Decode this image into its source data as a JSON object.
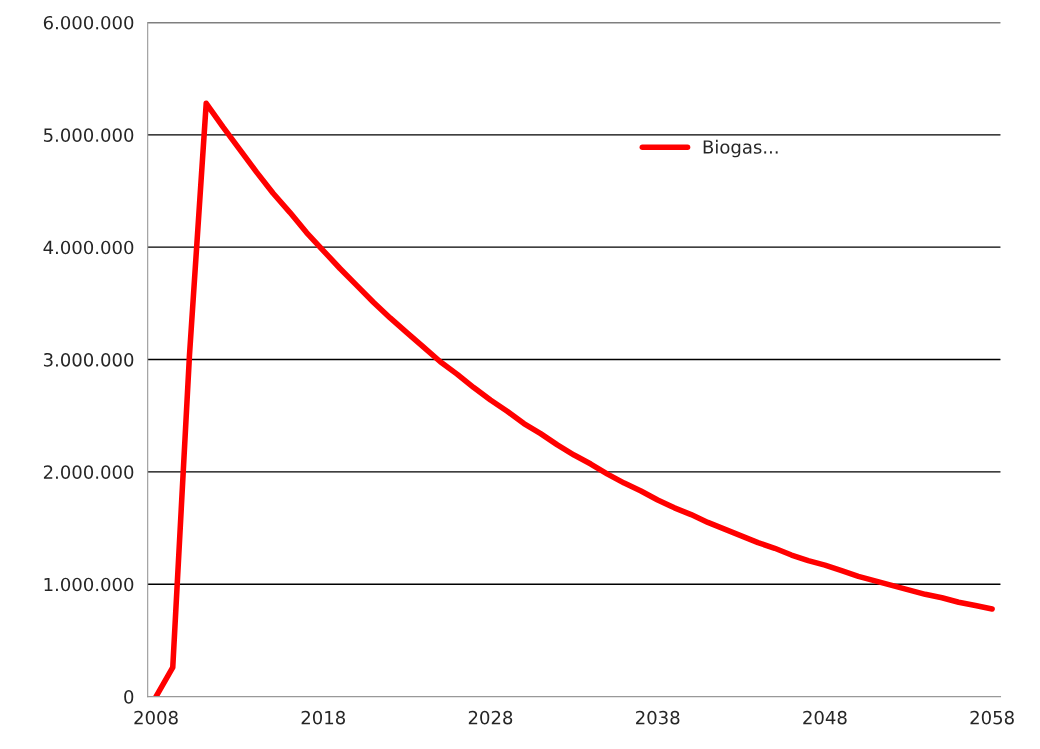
{
  "chart_data": {
    "type": "line",
    "categories": [
      "2008",
      null,
      null,
      null,
      null,
      null,
      null,
      null,
      null,
      null,
      "2018",
      null,
      null,
      null,
      null,
      null,
      null,
      null,
      null,
      null,
      "2028",
      null,
      null,
      null,
      null,
      null,
      null,
      null,
      null,
      null,
      "2038",
      null,
      null,
      null,
      null,
      null,
      null,
      null,
      null,
      null,
      "2048",
      null,
      null,
      null,
      null,
      null,
      null,
      null,
      null,
      null,
      "2058"
    ],
    "series": [
      {
        "name": "Biogas...",
        "color": "#ff0000",
        "values": [
          0,
          260000,
          3040000,
          5280000,
          5070000,
          4870000,
          4670000,
          4480000,
          4310000,
          4130000,
          3970000,
          3810000,
          3660000,
          3510000,
          3370000,
          3240000,
          3110000,
          2980000,
          2870000,
          2750000,
          2640000,
          2540000,
          2430000,
          2340000,
          2240000,
          2150000,
          2070000,
          1980000,
          1900000,
          1830000,
          1750000,
          1680000,
          1620000,
          1550000,
          1490000,
          1430000,
          1370000,
          1320000,
          1260000,
          1210000,
          1170000,
          1120000,
          1070000,
          1030000,
          990000,
          950000,
          910000,
          880000,
          840000,
          810000,
          780000
        ]
      }
    ],
    "ylim": [
      0,
      6000000
    ],
    "yticks": [
      {
        "value": 0,
        "label": "0"
      },
      {
        "value": 1000000,
        "label": "1.000.000"
      },
      {
        "value": 2000000,
        "label": "2.000.000"
      },
      {
        "value": 3000000,
        "label": "3.000.000"
      },
      {
        "value": 4000000,
        "label": "4.000.000"
      },
      {
        "value": 5000000,
        "label": "5.000.000"
      },
      {
        "value": 6000000,
        "label": "6.000.000"
      }
    ],
    "grid": "y",
    "legend": "top right",
    "marker": "none",
    "line_style": "solid"
  }
}
